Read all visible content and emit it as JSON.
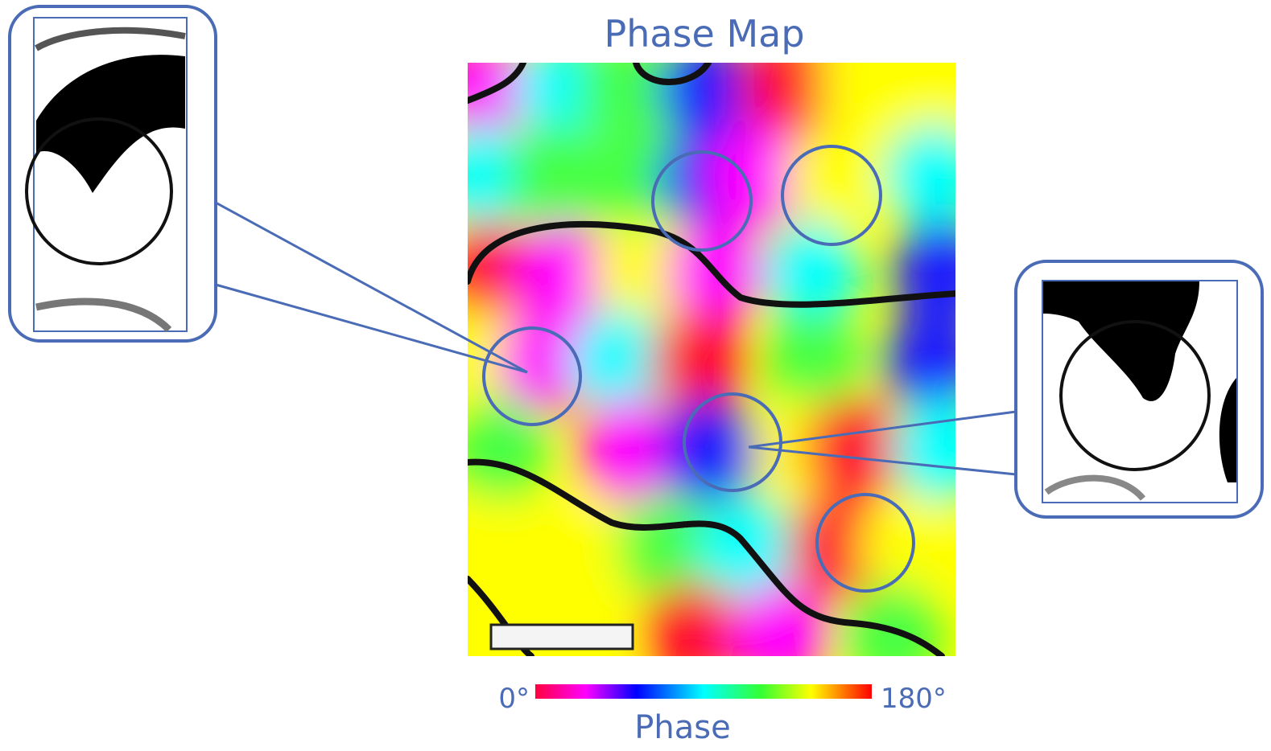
{
  "title": "Phase Map",
  "colorbar": {
    "min_label": "0°",
    "max_label": "180°",
    "label": "Phase"
  }
}
